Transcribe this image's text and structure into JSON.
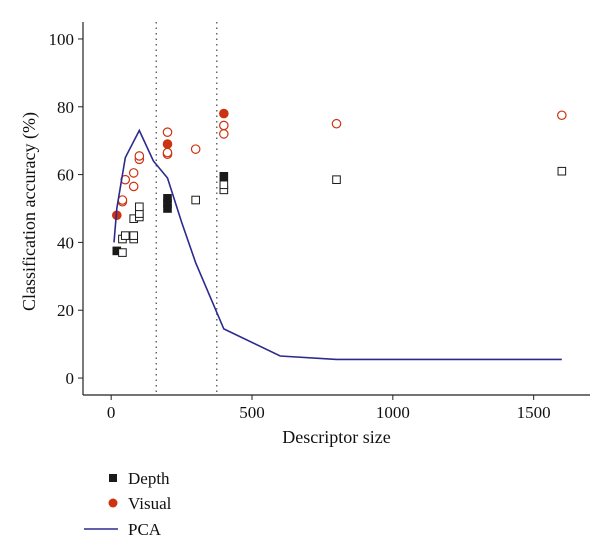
{
  "chart_data": {
    "type": "scatter",
    "title": "",
    "xlabel": "Descriptor size",
    "ylabel": "Classification accuracy (%)",
    "xlim": [
      -100,
      1700
    ],
    "ylim": [
      -5,
      105
    ],
    "xticks": [
      0,
      500,
      1000,
      1500
    ],
    "yticks": [
      0,
      20,
      40,
      60,
      80,
      100
    ],
    "grid": false,
    "vlines": [
      160,
      375
    ],
    "legend": {
      "placement": "bottom-left-outside"
    },
    "colors": {
      "depth": "#1a1a1a",
      "visual": "#cc3311",
      "pca": "#2b2b8f"
    },
    "series": [
      {
        "name": "Depth",
        "marker": "square",
        "points": [
          {
            "x": 20,
            "y": 37.5,
            "filled": true
          },
          {
            "x": 40,
            "y": 37,
            "filled": false
          },
          {
            "x": 40,
            "y": 41,
            "filled": false
          },
          {
            "x": 50,
            "y": 42,
            "filled": false
          },
          {
            "x": 80,
            "y": 41,
            "filled": false
          },
          {
            "x": 80,
            "y": 42,
            "filled": false
          },
          {
            "x": 80,
            "y": 47,
            "filled": false
          },
          {
            "x": 100,
            "y": 47.5,
            "filled": false
          },
          {
            "x": 100,
            "y": 48.5,
            "filled": false
          },
          {
            "x": 100,
            "y": 50.5,
            "filled": false
          },
          {
            "x": 200,
            "y": 50,
            "filled": true
          },
          {
            "x": 200,
            "y": 51.5,
            "filled": true
          },
          {
            "x": 200,
            "y": 53,
            "filled": true
          },
          {
            "x": 300,
            "y": 52.5,
            "filled": false
          },
          {
            "x": 400,
            "y": 55.5,
            "filled": false
          },
          {
            "x": 400,
            "y": 57,
            "filled": false
          },
          {
            "x": 400,
            "y": 59.5,
            "filled": true
          },
          {
            "x": 800,
            "y": 58.5,
            "filled": false
          },
          {
            "x": 1600,
            "y": 61,
            "filled": false
          }
        ]
      },
      {
        "name": "Visual",
        "marker": "circle",
        "points": [
          {
            "x": 20,
            "y": 48,
            "filled": true
          },
          {
            "x": 40,
            "y": 52,
            "filled": false
          },
          {
            "x": 40,
            "y": 52.5,
            "filled": false
          },
          {
            "x": 50,
            "y": 58.5,
            "filled": false
          },
          {
            "x": 80,
            "y": 56.5,
            "filled": false
          },
          {
            "x": 80,
            "y": 60.5,
            "filled": false
          },
          {
            "x": 100,
            "y": 64.5,
            "filled": false
          },
          {
            "x": 100,
            "y": 65.5,
            "filled": false
          },
          {
            "x": 200,
            "y": 66,
            "filled": false
          },
          {
            "x": 200,
            "y": 66.5,
            "filled": false
          },
          {
            "x": 200,
            "y": 69,
            "filled": true
          },
          {
            "x": 200,
            "y": 72.5,
            "filled": false
          },
          {
            "x": 300,
            "y": 67.5,
            "filled": false
          },
          {
            "x": 400,
            "y": 72,
            "filled": false
          },
          {
            "x": 400,
            "y": 74.5,
            "filled": false
          },
          {
            "x": 400,
            "y": 78,
            "filled": true
          },
          {
            "x": 800,
            "y": 75,
            "filled": false
          },
          {
            "x": 1600,
            "y": 77.5,
            "filled": false
          }
        ]
      },
      {
        "name": "PCA",
        "marker": "line",
        "points": [
          {
            "x": 10,
            "y": 40
          },
          {
            "x": 20,
            "y": 50
          },
          {
            "x": 50,
            "y": 65
          },
          {
            "x": 100,
            "y": 73
          },
          {
            "x": 150,
            "y": 64
          },
          {
            "x": 200,
            "y": 59
          },
          {
            "x": 250,
            "y": 46
          },
          {
            "x": 300,
            "y": 34
          },
          {
            "x": 400,
            "y": 14.5
          },
          {
            "x": 600,
            "y": 6.5
          },
          {
            "x": 800,
            "y": 5.5
          },
          {
            "x": 1600,
            "y": 5.5
          }
        ]
      }
    ]
  }
}
